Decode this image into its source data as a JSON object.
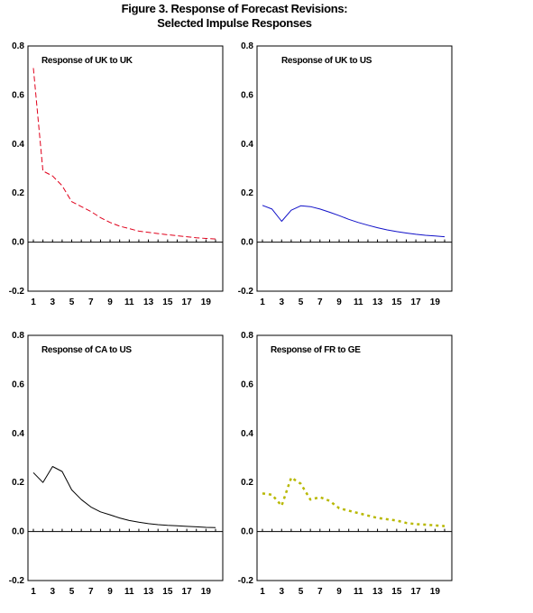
{
  "title": {
    "line1": "Figure 3. Response of  Forecast Revisions:",
    "line2": "Selected Impulse Responses"
  },
  "chart_data": [
    {
      "type": "line",
      "title": "Response of UK to UK",
      "x": [
        1,
        2,
        3,
        4,
        5,
        6,
        7,
        8,
        9,
        10,
        11,
        12,
        13,
        14,
        15,
        16,
        17,
        18,
        19,
        20
      ],
      "xticks": [
        "1",
        "3",
        "5",
        "7",
        "9",
        "11",
        "13",
        "15",
        "17",
        "19"
      ],
      "yticks": [
        "0.8",
        "0.6",
        "0.4",
        "0.2",
        "0.0",
        "-0.2"
      ],
      "ylim": [
        -0.2,
        0.8
      ],
      "series": [
        {
          "values": [
            0.71,
            0.29,
            0.27,
            0.23,
            0.165,
            0.145,
            0.125,
            0.1,
            0.08,
            0.065,
            0.055,
            0.045,
            0.04,
            0.035,
            0.03,
            0.026,
            0.022,
            0.018,
            0.015,
            0.013
          ],
          "color": "#e0001b",
          "style": "dashed"
        }
      ]
    },
    {
      "type": "line",
      "title": "Response of UK to US",
      "x": [
        1,
        2,
        3,
        4,
        5,
        6,
        7,
        8,
        9,
        10,
        11,
        12,
        13,
        14,
        15,
        16,
        17,
        18,
        19,
        20
      ],
      "xticks": [
        "1",
        "3",
        "5",
        "7",
        "9",
        "11",
        "13",
        "15",
        "17",
        "19"
      ],
      "yticks": [
        "0.8",
        "0.6",
        "0.4",
        "0.2",
        "0.0",
        "-0.2"
      ],
      "ylim": [
        -0.2,
        0.8
      ],
      "series": [
        {
          "values": [
            0.15,
            0.135,
            0.085,
            0.13,
            0.148,
            0.145,
            0.135,
            0.122,
            0.108,
            0.093,
            0.08,
            0.069,
            0.059,
            0.05,
            0.043,
            0.037,
            0.032,
            0.028,
            0.025,
            0.022
          ],
          "color": "#1010c8",
          "style": "solid"
        }
      ]
    },
    {
      "type": "line",
      "title": "Response of CA to US",
      "x": [
        1,
        2,
        3,
        4,
        5,
        6,
        7,
        8,
        9,
        10,
        11,
        12,
        13,
        14,
        15,
        16,
        17,
        18,
        19,
        20
      ],
      "xticks": [
        "1",
        "3",
        "5",
        "7",
        "9",
        "11",
        "13",
        "15",
        "17",
        "19"
      ],
      "yticks": [
        "0.8",
        "0.6",
        "0.4",
        "0.2",
        "0.0",
        "-0.2"
      ],
      "ylim": [
        -0.2,
        0.8
      ],
      "series": [
        {
          "values": [
            0.24,
            0.2,
            0.265,
            0.245,
            0.17,
            0.13,
            0.1,
            0.08,
            0.068,
            0.055,
            0.045,
            0.038,
            0.032,
            0.028,
            0.025,
            0.023,
            0.021,
            0.019,
            0.017,
            0.016
          ],
          "color": "#000000",
          "style": "solid"
        }
      ]
    },
    {
      "type": "line",
      "title": "Response of FR to GE",
      "x": [
        1,
        2,
        3,
        4,
        5,
        6,
        7,
        8,
        9,
        10,
        11,
        12,
        13,
        14,
        15,
        16,
        17,
        18,
        19,
        20
      ],
      "xticks": [
        "1",
        "3",
        "5",
        "7",
        "9",
        "11",
        "13",
        "15",
        "17",
        "19"
      ],
      "yticks": [
        "0.8",
        "0.6",
        "0.4",
        "0.2",
        "0.0",
        "-0.2"
      ],
      "ylim": [
        -0.2,
        0.8
      ],
      "series": [
        {
          "values": [
            0.155,
            0.15,
            0.105,
            0.22,
            0.195,
            0.13,
            0.14,
            0.125,
            0.095,
            0.085,
            0.075,
            0.065,
            0.055,
            0.05,
            0.045,
            0.035,
            0.03,
            0.028,
            0.025,
            0.022
          ],
          "color": "#b8b800",
          "style": "dotted"
        }
      ]
    }
  ]
}
